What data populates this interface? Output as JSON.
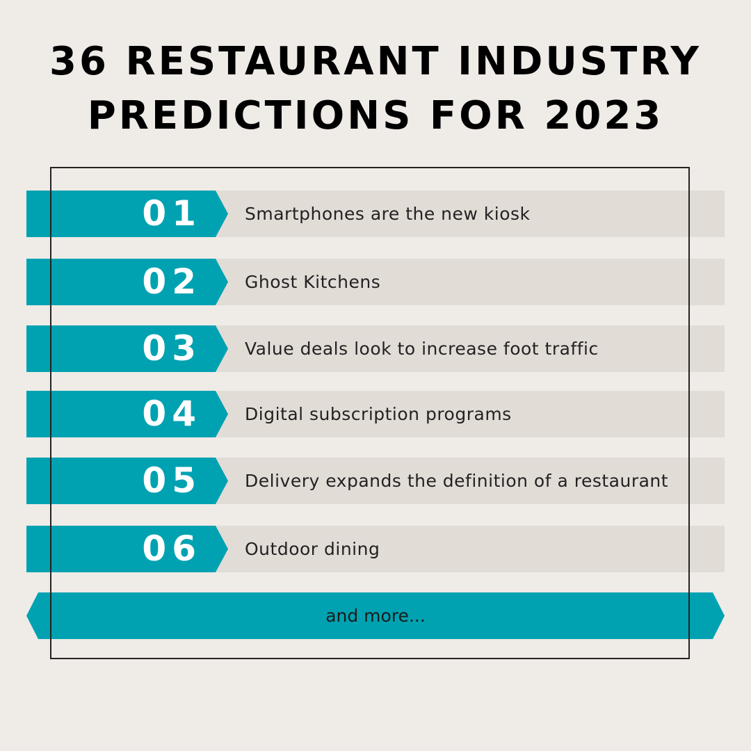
{
  "title": {
    "line1": "36 RESTAURANT INDUSTRY",
    "line2": "PREDICTIONS FOR 2023"
  },
  "items": [
    {
      "number": "01",
      "text": "Smartphones are the new kiosk"
    },
    {
      "number": "02",
      "text": "Ghost Kitchens"
    },
    {
      "number": "03",
      "text": "Value deals look to increase foot traffic"
    },
    {
      "number": "04",
      "text": "Digital subscription programs"
    },
    {
      "number": "05",
      "text": "Delivery expands the definition of a restaurant"
    },
    {
      "number": "06",
      "text": "Outdoor dining"
    }
  ],
  "more_label": "and more...",
  "colors": {
    "background": "#efebe7",
    "accent": "#00a2b1",
    "row_bg": "#e2dcd7",
    "title": "#000000"
  }
}
